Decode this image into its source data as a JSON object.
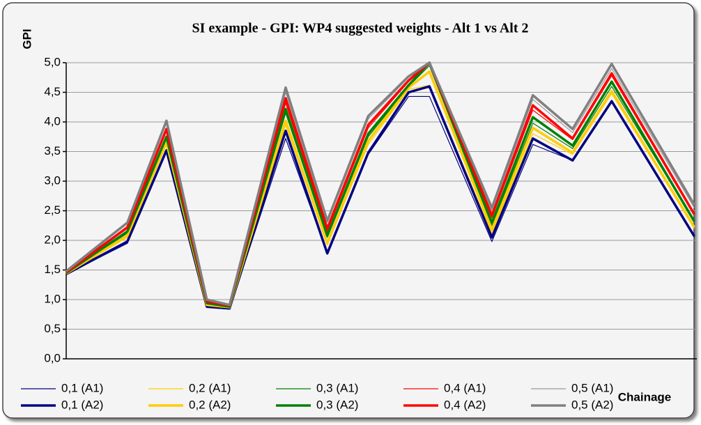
{
  "chart_data": {
    "type": "line",
    "title": "SI example - GPI: WP4 suggested weights - Alt 1 vs Alt 2",
    "y_label": "GPI",
    "x_label": "Chainage",
    "x": [
      0,
      9.7,
      15.9,
      22.3,
      25.9,
      34.8,
      41.4,
      47.9,
      54.3,
      57.6,
      67.5,
      74,
      80.3,
      86.5,
      99.6
    ],
    "xlim": [
      0,
      100
    ],
    "ylim": [
      0,
      5
    ],
    "yticks": [
      {
        "value": 0,
        "label": "0,0"
      },
      {
        "value": 0.5,
        "label": "0,5"
      },
      {
        "value": 1,
        "label": "1,0"
      },
      {
        "value": 1.5,
        "label": "1,5"
      },
      {
        "value": 2,
        "label": "2,0"
      },
      {
        "value": 2.5,
        "label": "2,5"
      },
      {
        "value": 3,
        "label": "3,0"
      },
      {
        "value": 3.5,
        "label": "3,5"
      },
      {
        "value": 4,
        "label": "4,0"
      },
      {
        "value": 4.5,
        "label": "4,5"
      },
      {
        "value": 5,
        "label": "5,0"
      }
    ],
    "grid": true,
    "legend": "bottom",
    "series": [
      {
        "name": "0,1 (A1)",
        "color": "#000080",
        "width": 1.2,
        "values": [
          1.43,
          1.95,
          3.5,
          0.87,
          0.84,
          3.72,
          1.78,
          3.45,
          4.43,
          4.43,
          1.98,
          3.62,
          3.35,
          4.33,
          2.05
        ]
      },
      {
        "name": "0,2 (A1)",
        "color": "#ffcc00",
        "width": 1.2,
        "values": [
          1.44,
          2.05,
          3.62,
          0.9,
          0.86,
          3.95,
          1.92,
          3.62,
          4.55,
          4.62,
          2.12,
          3.8,
          3.45,
          4.48,
          2.2
        ]
      },
      {
        "name": "0,3 (A1)",
        "color": "#008000",
        "width": 1.2,
        "values": [
          1.45,
          2.12,
          3.72,
          0.93,
          0.88,
          4.15,
          2.05,
          3.75,
          4.6,
          4.95,
          2.25,
          3.98,
          3.55,
          4.6,
          2.32
        ]
      },
      {
        "name": "0,4 (A1)",
        "color": "#ff0000",
        "width": 1.2,
        "values": [
          1.46,
          2.2,
          3.85,
          0.96,
          0.89,
          4.32,
          2.15,
          3.9,
          4.68,
          5.0,
          2.38,
          4.2,
          3.7,
          4.78,
          2.42
        ]
      },
      {
        "name": "0,5 (A1)",
        "color": "#999999",
        "width": 1.2,
        "values": [
          1.47,
          2.28,
          3.98,
          0.99,
          0.9,
          4.5,
          2.3,
          4.05,
          4.75,
          5.0,
          2.5,
          4.38,
          3.82,
          4.9,
          2.55
        ]
      },
      {
        "name": "0,1 (A2)",
        "color": "#000080",
        "width": 3.5,
        "values": [
          1.43,
          1.98,
          3.52,
          0.88,
          0.85,
          3.85,
          1.78,
          3.48,
          4.5,
          4.6,
          2.05,
          3.72,
          3.35,
          4.35,
          2.07
        ]
      },
      {
        "name": "0,2 (A2)",
        "color": "#ffcc00",
        "width": 3.5,
        "values": [
          1.44,
          2.08,
          3.65,
          0.91,
          0.87,
          4.02,
          1.95,
          3.68,
          4.58,
          4.85,
          2.18,
          3.9,
          3.48,
          4.52,
          2.22
        ]
      },
      {
        "name": "0,3 (A2)",
        "color": "#008000",
        "width": 3.5,
        "values": [
          1.45,
          2.15,
          3.75,
          0.94,
          0.88,
          4.22,
          2.08,
          3.8,
          4.62,
          5.0,
          2.3,
          4.08,
          3.6,
          4.68,
          2.32
        ]
      },
      {
        "name": "0,4 (A2)",
        "color": "#ff0000",
        "width": 3.5,
        "values": [
          1.46,
          2.22,
          3.88,
          0.97,
          0.9,
          4.4,
          2.2,
          3.95,
          4.7,
          5.0,
          2.42,
          4.28,
          3.72,
          4.82,
          2.44
        ]
      },
      {
        "name": "0,5 (A2)",
        "color": "#808080",
        "width": 3.5,
        "values": [
          1.48,
          2.3,
          4.02,
          1.0,
          0.91,
          4.58,
          2.33,
          4.1,
          4.77,
          5.0,
          2.55,
          4.45,
          3.88,
          4.98,
          2.6
        ]
      }
    ]
  }
}
